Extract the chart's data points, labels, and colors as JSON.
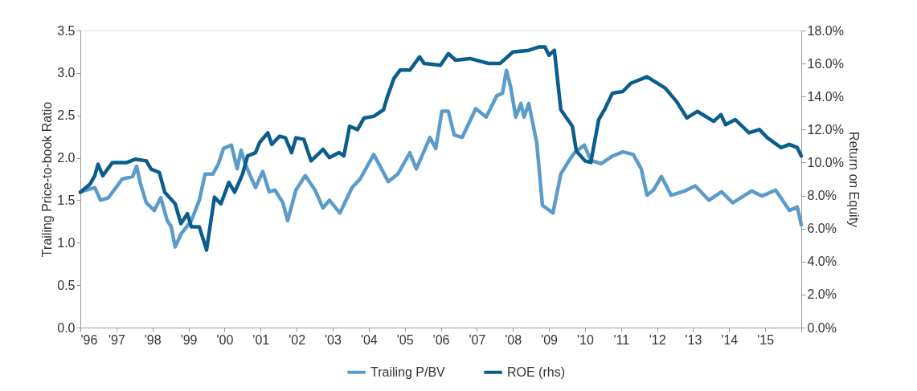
{
  "chart_data": {
    "type": "line",
    "ylabel": "Trailing Price-to-book Ratio",
    "y2label": "Return on Equity",
    "xlim": [
      1996,
      2016
    ],
    "xticks": [
      {
        "value": 1996,
        "label": "'96"
      },
      {
        "value": 1997,
        "label": "'97"
      },
      {
        "value": 1998,
        "label": "'98"
      },
      {
        "value": 1999,
        "label": "'99"
      },
      {
        "value": 2000,
        "label": "'00"
      },
      {
        "value": 2001,
        "label": "'01"
      },
      {
        "value": 2002,
        "label": "'02"
      },
      {
        "value": 2003,
        "label": "'03"
      },
      {
        "value": 2004,
        "label": "'04"
      },
      {
        "value": 2005,
        "label": "'05"
      },
      {
        "value": 2006,
        "label": "'06"
      },
      {
        "value": 2007,
        "label": "'07"
      },
      {
        "value": 2008,
        "label": "'08"
      },
      {
        "value": 2009,
        "label": "'09"
      },
      {
        "value": 2010,
        "label": "'10"
      },
      {
        "value": 2011,
        "label": "'11"
      },
      {
        "value": 2012,
        "label": "'12"
      },
      {
        "value": 2013,
        "label": "'13"
      },
      {
        "value": 2014,
        "label": "'14"
      },
      {
        "value": 2015,
        "label": "'15"
      },
      {
        "value": 2016,
        "label": null
      }
    ],
    "ylim": [
      0,
      3.5
    ],
    "yticks": [
      {
        "value": 0,
        "label": "0.0"
      },
      {
        "value": 0.5,
        "label": "0.5"
      },
      {
        "value": 1,
        "label": "1.0"
      },
      {
        "value": 1.5,
        "label": "1.5"
      },
      {
        "value": 2,
        "label": "2.0"
      },
      {
        "value": 2.5,
        "label": "2.5"
      },
      {
        "value": 3,
        "label": "3.0"
      },
      {
        "value": 3.5,
        "label": "3.5"
      }
    ],
    "y2lim": [
      0,
      18
    ],
    "y2ticks": [
      {
        "value": 0,
        "label": "0.0%"
      },
      {
        "value": 2,
        "label": "2.0%"
      },
      {
        "value": 4,
        "label": "4.0%"
      },
      {
        "value": 6,
        "label": "6.0%"
      },
      {
        "value": 8,
        "label": "8.0%"
      },
      {
        "value": 10,
        "label": "10.0%"
      },
      {
        "value": 12,
        "label": "12.0%"
      },
      {
        "value": 14,
        "label": "14.0%"
      },
      {
        "value": 16,
        "label": "16.0%"
      },
      {
        "value": 18,
        "label": "18.0%"
      }
    ],
    "grid": false,
    "legend": "bottom",
    "line_style": "solid",
    "marker": "none",
    "series": [
      {
        "name": "Trailing P/BV",
        "color": "#5b9bcb",
        "x": [
          1996.0,
          1996.4,
          1996.56,
          1996.78,
          1997.16,
          1997.45,
          1997.56,
          1997.67,
          1997.83,
          1998.05,
          1998.23,
          1998.41,
          1998.52,
          1998.63,
          1998.79,
          1999.08,
          1999.3,
          1999.46,
          1999.68,
          1999.83,
          1999.97,
          2000.19,
          2000.35,
          2000.46,
          2000.57,
          2000.86,
          2001.06,
          2001.24,
          2001.4,
          2001.62,
          2001.75,
          2001.98,
          2002.24,
          2002.51,
          2002.73,
          2002.91,
          2003.2,
          2003.54,
          2003.76,
          2004.14,
          2004.54,
          2004.81,
          2005.14,
          2005.32,
          2005.7,
          2005.86,
          2006.03,
          2006.21,
          2006.37,
          2006.59,
          2006.97,
          2007.26,
          2007.55,
          2007.71,
          2007.82,
          2007.93,
          2008.08,
          2008.22,
          2008.31,
          2008.44,
          2008.66,
          2008.82,
          2009.11,
          2009.33,
          2009.56,
          2009.71,
          2009.98,
          2010.16,
          2010.45,
          2010.76,
          2011.05,
          2011.34,
          2011.56,
          2011.72,
          2011.9,
          2012.12,
          2012.39,
          2012.77,
          2013.06,
          2013.44,
          2013.79,
          2014.1,
          2014.62,
          2014.91,
          2015.29,
          2015.67,
          2015.89,
          2016.0
        ],
        "values": [
          1.6,
          1.65,
          1.5,
          1.53,
          1.75,
          1.78,
          1.9,
          1.69,
          1.47,
          1.38,
          1.53,
          1.26,
          1.19,
          0.95,
          1.1,
          1.26,
          1.5,
          1.81,
          1.81,
          1.93,
          2.11,
          2.15,
          1.87,
          2.09,
          1.93,
          1.65,
          1.84,
          1.6,
          1.62,
          1.47,
          1.26,
          1.62,
          1.79,
          1.62,
          1.41,
          1.5,
          1.35,
          1.65,
          1.75,
          2.04,
          1.72,
          1.81,
          2.06,
          1.87,
          2.24,
          2.11,
          2.55,
          2.55,
          2.27,
          2.24,
          2.58,
          2.48,
          2.73,
          2.76,
          3.03,
          2.85,
          2.48,
          2.64,
          2.48,
          2.64,
          2.18,
          1.44,
          1.35,
          1.81,
          1.97,
          2.06,
          2.15,
          1.97,
          1.93,
          2.02,
          2.07,
          2.04,
          1.87,
          1.56,
          1.62,
          1.78,
          1.56,
          1.61,
          1.67,
          1.5,
          1.6,
          1.47,
          1.61,
          1.55,
          1.62,
          1.38,
          1.42,
          1.21
        ]
      },
      {
        "name": "ROE (rhs)",
        "color": "#0b5d8c",
        "axis": "y2",
        "x": [
          1996.0,
          1996.27,
          1996.4,
          1996.49,
          1996.62,
          1996.89,
          1997.29,
          1997.52,
          1997.83,
          1997.96,
          1998.19,
          1998.34,
          1998.63,
          1998.79,
          1998.97,
          1999.08,
          1999.3,
          1999.5,
          1999.72,
          1999.9,
          2000.12,
          2000.28,
          2000.5,
          2000.64,
          2000.86,
          2000.97,
          2001.2,
          2001.31,
          2001.53,
          2001.69,
          2001.86,
          2001.98,
          2002.2,
          2002.4,
          2002.64,
          2002.73,
          2002.91,
          2003.18,
          2003.31,
          2003.47,
          2003.69,
          2003.87,
          2004.14,
          2004.41,
          2004.52,
          2004.7,
          2004.87,
          2005.14,
          2005.41,
          2005.54,
          2005.99,
          2006.21,
          2006.41,
          2006.81,
          2007.33,
          2007.64,
          2008.0,
          2008.44,
          2008.71,
          2008.89,
          2009.0,
          2009.15,
          2009.33,
          2009.65,
          2009.76,
          2010.0,
          2010.16,
          2010.38,
          2010.54,
          2010.76,
          2011.05,
          2011.27,
          2011.72,
          2012.23,
          2012.54,
          2012.83,
          2013.12,
          2013.57,
          2013.77,
          2013.9,
          2014.17,
          2014.55,
          2014.84,
          2015.06,
          2015.44,
          2015.67,
          2015.89,
          2016.0
        ],
        "values": [
          8.2,
          8.7,
          9.2,
          9.9,
          9.2,
          10.0,
          10.0,
          10.2,
          10.1,
          9.6,
          9.4,
          8.2,
          7.5,
          6.3,
          6.9,
          6.1,
          6.1,
          4.7,
          7.9,
          7.5,
          8.8,
          8.2,
          9.3,
          10.4,
          10.6,
          11.2,
          11.8,
          11.1,
          11.6,
          11.5,
          10.6,
          11.5,
          11.4,
          10.1,
          10.6,
          10.8,
          10.3,
          10.6,
          10.4,
          12.2,
          12.0,
          12.7,
          12.8,
          13.2,
          14.0,
          15.1,
          15.6,
          15.6,
          16.4,
          16.0,
          15.9,
          16.6,
          16.2,
          16.3,
          16.0,
          16.0,
          16.7,
          16.8,
          17.0,
          17.0,
          16.5,
          16.8,
          13.2,
          12.2,
          10.7,
          10.1,
          10.0,
          12.6,
          13.2,
          14.2,
          14.3,
          14.8,
          15.2,
          14.5,
          13.7,
          12.7,
          13.1,
          12.5,
          12.9,
          12.3,
          12.6,
          11.8,
          12.0,
          11.5,
          10.9,
          11.1,
          10.9,
          10.4
        ]
      }
    ]
  }
}
